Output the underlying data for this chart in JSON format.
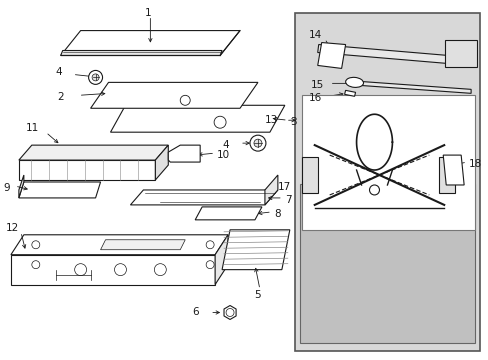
{
  "bg_color": "#ffffff",
  "line_color": "#1a1a1a",
  "panel_bg": "#d8d8d8",
  "panel_inner_bg": "#c8c8c8",
  "fig_width": 4.89,
  "fig_height": 3.6,
  "dpi": 100,
  "label_fontsize": 7.5,
  "hatch_color": "#444444"
}
